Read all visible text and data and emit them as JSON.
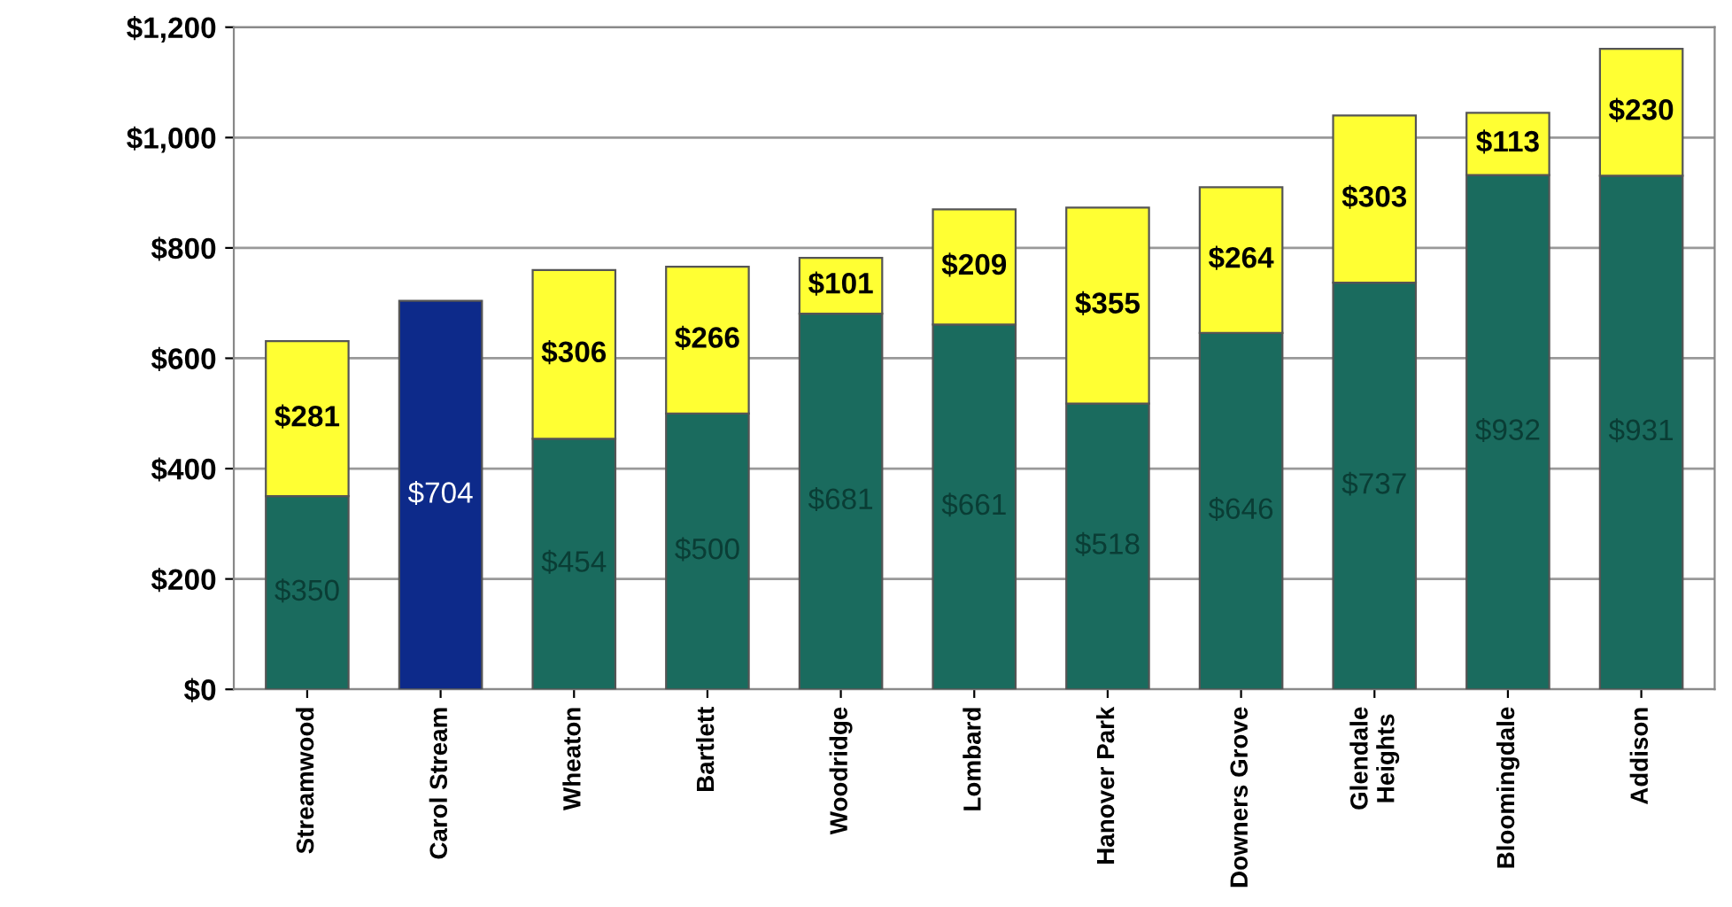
{
  "chart_data": {
    "type": "bar",
    "stacked": true,
    "categories": [
      "Streamwood",
      "Carol Stream",
      "Wheaton",
      "Bartlett",
      "Woodridge",
      "Lombard",
      "Hanover Park",
      "Downers Grove",
      "Glendale\nHeights",
      "Bloomingdale",
      "Addison"
    ],
    "series": [
      {
        "color": "#1a6b5e",
        "colors": [
          "#1a6b5e",
          "#0d2a8a",
          "#1a6b5e",
          "#1a6b5e",
          "#1a6b5e",
          "#1a6b5e",
          "#1a6b5e",
          "#1a6b5e",
          "#1a6b5e",
          "#1a6b5e",
          "#1a6b5e"
        ],
        "values": [
          350,
          704,
          454,
          500,
          681,
          661,
          518,
          646,
          737,
          932,
          931
        ],
        "value_labels": [
          "$350",
          "$704",
          "$454",
          "$500",
          "$681",
          "$661",
          "$518",
          "$646",
          "$737",
          "$932",
          "$931"
        ]
      },
      {
        "color": "#ffff33",
        "values": [
          281,
          null,
          306,
          266,
          101,
          209,
          355,
          264,
          303,
          113,
          230
        ],
        "value_labels": [
          "$281",
          null,
          "$306",
          "$266",
          "$101",
          "$209",
          "$355",
          "$264",
          "$303",
          "$113",
          "$230"
        ]
      }
    ],
    "ylim": [
      0,
      1200
    ],
    "yticks": [
      {
        "value": 0,
        "label": "$0"
      },
      {
        "value": 200,
        "label": "$200"
      },
      {
        "value": 400,
        "label": "$400"
      },
      {
        "value": 600,
        "label": "$600"
      },
      {
        "value": 800,
        "label": "$800"
      },
      {
        "value": 1000,
        "label": "$1,000"
      },
      {
        "value": 1200,
        "label": "$1,200"
      }
    ],
    "grid": "y",
    "legend": false
  }
}
